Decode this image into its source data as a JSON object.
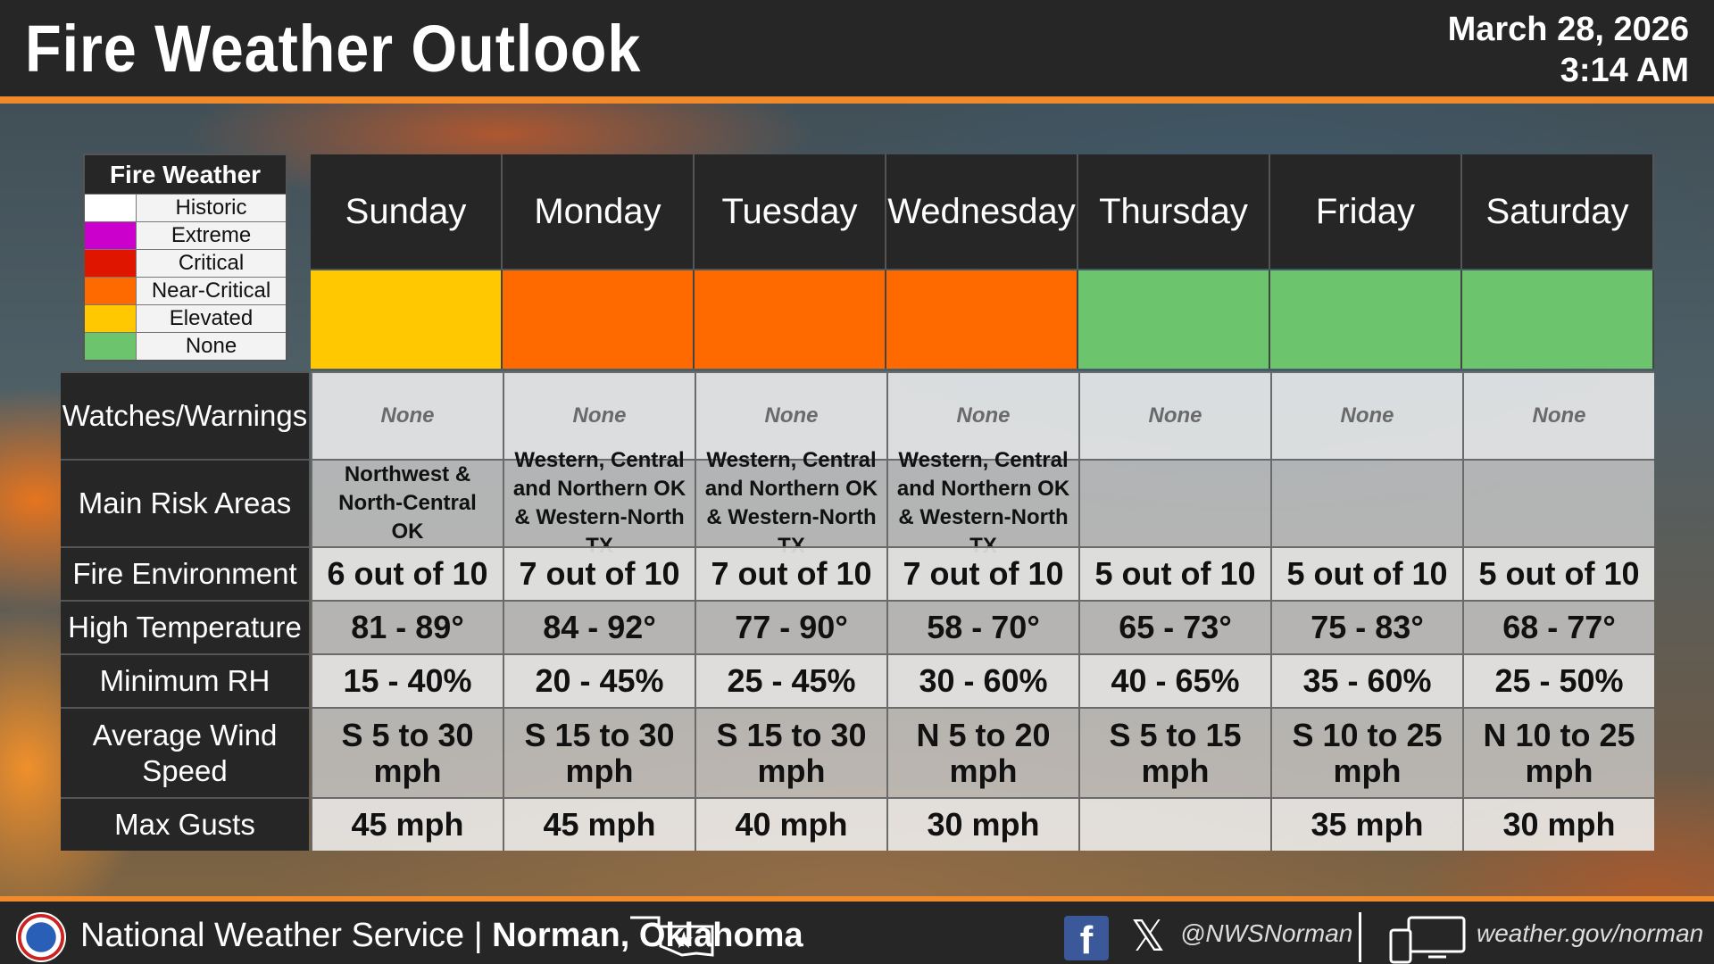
{
  "header": {
    "title": "Fire Weather Outlook",
    "date": "March 28, 2026",
    "time": "3:14 AM"
  },
  "legend": {
    "title": "Fire Weather",
    "items": [
      {
        "label": "Historic",
        "color": "#ffffff"
      },
      {
        "label": "Extreme",
        "color": "#cc00cc"
      },
      {
        "label": "Critical",
        "color": "#e01500"
      },
      {
        "label": "Near-Critical",
        "color": "#ff6a00"
      },
      {
        "label": "Elevated",
        "color": "#ffc800"
      },
      {
        "label": "None",
        "color": "#6cc46c"
      }
    ]
  },
  "rows": {
    "watches": "Watches/Warnings",
    "risk_areas": "Main Risk Areas",
    "fire_env": "Fire Environment",
    "high_temp": "High Temperature",
    "min_rh": "Minimum RH",
    "wind": "Average Wind Speed",
    "gusts": "Max Gusts"
  },
  "days": [
    {
      "name": "Sunday",
      "risk_color": "#ffc800",
      "watches": "None",
      "risk_areas": "Northwest & North-Central OK",
      "fire_env": "6 out of 10",
      "high_temp": "81 - 89°",
      "min_rh": "15 - 40%",
      "wind": "S 5 to 30 mph",
      "gusts": "45 mph"
    },
    {
      "name": "Monday",
      "risk_color": "#ff6a00",
      "watches": "None",
      "risk_areas": "Western, Central and Northern OK & Western-North TX",
      "fire_env": "7 out of 10",
      "high_temp": "84 - 92°",
      "min_rh": "20 - 45%",
      "wind": "S 15 to 30 mph",
      "gusts": "45 mph"
    },
    {
      "name": "Tuesday",
      "risk_color": "#ff6a00",
      "watches": "None",
      "risk_areas": "Western, Central and Northern OK & Western-North TX",
      "fire_env": "7 out of 10",
      "high_temp": "77 - 90°",
      "min_rh": "25 - 45%",
      "wind": "S 15 to 30 mph",
      "gusts": "40 mph"
    },
    {
      "name": "Wednesday",
      "risk_color": "#ff6a00",
      "watches": "None",
      "risk_areas": "Western, Central and Northern OK & Western-North TX",
      "fire_env": "7 out of 10",
      "high_temp": "58 - 70°",
      "min_rh": "30 - 60%",
      "wind": "N 5 to 20 mph",
      "gusts": "30 mph"
    },
    {
      "name": "Thursday",
      "risk_color": "#6cc46c",
      "watches": "None",
      "risk_areas": "",
      "fire_env": "5 out of 10",
      "high_temp": "65 - 73°",
      "min_rh": "40 - 65%",
      "wind": "S 5 to 15 mph",
      "gusts": ""
    },
    {
      "name": "Friday",
      "risk_color": "#6cc46c",
      "watches": "None",
      "risk_areas": "",
      "fire_env": "5 out of 10",
      "high_temp": "75 - 83°",
      "min_rh": "35 - 60%",
      "wind": "S 10 to 25 mph",
      "gusts": "35 mph"
    },
    {
      "name": "Saturday",
      "risk_color": "#6cc46c",
      "watches": "None",
      "risk_areas": "",
      "fire_env": "5 out of 10",
      "high_temp": "68 - 77°",
      "min_rh": "25 - 50%",
      "wind": "N 10 to 25 mph",
      "gusts": "30 mph"
    }
  ],
  "footer": {
    "org": "National Weather Service | ",
    "location": "Norman, Oklahoma",
    "handle": "@NWSNorman",
    "website": "weather.gov/norman",
    "icons": [
      "nws-logo",
      "oklahoma-icon",
      "facebook-icon",
      "x-icon",
      "computer-icon"
    ]
  }
}
